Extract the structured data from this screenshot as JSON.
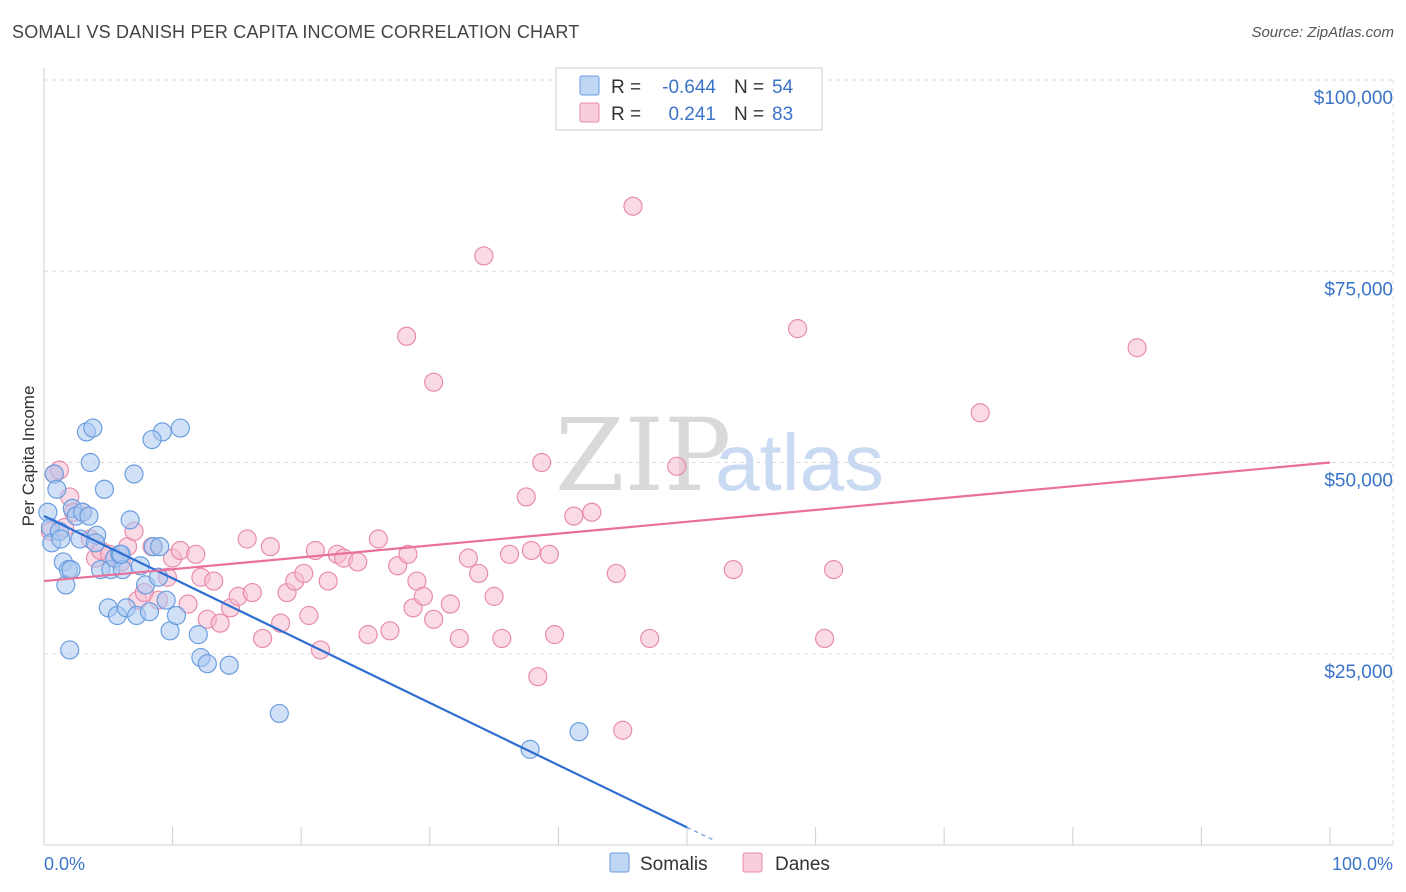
{
  "title": "SOMALI VS DANISH PER CAPITA INCOME CORRELATION CHART",
  "source": "Source: ZipAtlas.com",
  "colors": {
    "somali_fill": "#a9c8f0",
    "somali_stroke": "#6b9de0",
    "somali_line": "#2f6fd1",
    "danes_fill": "#f6bcd0",
    "danes_stroke": "#e88cab",
    "danes_line": "#e8709a",
    "axis_text": "#3a74c9",
    "grid": "#dddddd"
  },
  "legend": {
    "rows": [
      {
        "series": "Somalis",
        "r_label": "R =",
        "r_value": "-0.644",
        "n_label": "N =",
        "n_value": "54"
      },
      {
        "series": "Danes",
        "r_label": "R =",
        "r_value": "0.241",
        "n_label": "N =",
        "n_value": "83"
      }
    ]
  },
  "bottom_legend": [
    "Somalis",
    "Danes"
  ],
  "watermark": {
    "part1": "ZIP",
    "part2": "atlas"
  },
  "chart_data": {
    "type": "scatter",
    "title": "SOMALI VS DANISH PER CAPITA INCOME CORRELATION CHART",
    "xlabel": "",
    "ylabel": "Per Capita Income",
    "xlim": [
      0,
      100
    ],
    "ylim": [
      0,
      100000
    ],
    "x_tick_labels": {
      "min": "0.0%",
      "max": "100.0%"
    },
    "y_ticks": [
      {
        "value": 25000,
        "label": "$25,000"
      },
      {
        "value": 50000,
        "label": "$50,000"
      },
      {
        "value": 75000,
        "label": "$75,000"
      },
      {
        "value": 100000,
        "label": "$100,000"
      }
    ],
    "series": [
      {
        "name": "Somalis",
        "trend": {
          "x1": 0,
          "y1": 43000,
          "x2": 50,
          "y2": 2300,
          "dash_x2": 52,
          "dash_y2": 700
        },
        "points": [
          [
            0.3,
            43500
          ],
          [
            0.5,
            41500
          ],
          [
            0.6,
            39500
          ],
          [
            0.8,
            48500
          ],
          [
            1.0,
            46500
          ],
          [
            1.2,
            41000
          ],
          [
            1.5,
            37000
          ],
          [
            1.7,
            34000
          ],
          [
            1.9,
            36000
          ],
          [
            2.2,
            44000
          ],
          [
            2.5,
            43000
          ],
          [
            2.8,
            40000
          ],
          [
            3.0,
            43500
          ],
          [
            3.3,
            54000
          ],
          [
            3.6,
            50000
          ],
          [
            3.8,
            54500
          ],
          [
            4.1,
            40500
          ],
          [
            4.4,
            36000
          ],
          [
            4.7,
            46500
          ],
          [
            5.0,
            31000
          ],
          [
            5.2,
            36000
          ],
          [
            5.5,
            37500
          ],
          [
            5.7,
            30000
          ],
          [
            5.9,
            38000
          ],
          [
            6.1,
            36000
          ],
          [
            6.4,
            31000
          ],
          [
            6.7,
            42500
          ],
          [
            7.2,
            30000
          ],
          [
            7.5,
            36500
          ],
          [
            7.9,
            34000
          ],
          [
            8.2,
            30500
          ],
          [
            8.5,
            39000
          ],
          [
            8.9,
            35000
          ],
          [
            9.2,
            54000
          ],
          [
            9.5,
            32000
          ],
          [
            9.8,
            28000
          ],
          [
            8.4,
            53000
          ],
          [
            10.3,
            30000
          ],
          [
            10.6,
            54500
          ],
          [
            12.0,
            27500
          ],
          [
            12.2,
            24500
          ],
          [
            12.7,
            23700
          ],
          [
            14.4,
            23500
          ],
          [
            18.3,
            17200
          ],
          [
            2.0,
            25500
          ],
          [
            3.5,
            43000
          ],
          [
            6.0,
            38000
          ],
          [
            7.0,
            48500
          ],
          [
            9.0,
            39000
          ],
          [
            1.3,
            40000
          ],
          [
            2.1,
            36000
          ],
          [
            4.0,
            39500
          ],
          [
            37.8,
            12500
          ],
          [
            41.6,
            14800
          ]
        ]
      },
      {
        "name": "Danes",
        "trend": {
          "x1": 0,
          "y1": 34500,
          "x2": 100,
          "y2": 50000
        },
        "points": [
          [
            0.5,
            41000
          ],
          [
            0.8,
            48500
          ],
          [
            1.2,
            49000
          ],
          [
            1.6,
            41500
          ],
          [
            2.0,
            45500
          ],
          [
            2.3,
            43500
          ],
          [
            3.0,
            43500
          ],
          [
            3.6,
            40000
          ],
          [
            4.0,
            37500
          ],
          [
            4.4,
            38500
          ],
          [
            5.1,
            38000
          ],
          [
            5.5,
            37500
          ],
          [
            6.0,
            37000
          ],
          [
            6.5,
            39000
          ],
          [
            7.0,
            41000
          ],
          [
            7.3,
            32000
          ],
          [
            7.8,
            33000
          ],
          [
            8.4,
            39000
          ],
          [
            8.9,
            32000
          ],
          [
            9.6,
            35000
          ],
          [
            10.0,
            37500
          ],
          [
            10.6,
            38500
          ],
          [
            11.2,
            31500
          ],
          [
            11.8,
            38000
          ],
          [
            12.2,
            35000
          ],
          [
            12.7,
            29500
          ],
          [
            13.2,
            34500
          ],
          [
            13.7,
            29000
          ],
          [
            14.5,
            31000
          ],
          [
            15.1,
            32500
          ],
          [
            15.8,
            40000
          ],
          [
            16.2,
            33000
          ],
          [
            17.0,
            27000
          ],
          [
            17.6,
            39000
          ],
          [
            18.4,
            29000
          ],
          [
            18.9,
            33000
          ],
          [
            19.5,
            34500
          ],
          [
            20.2,
            35500
          ],
          [
            20.6,
            30000
          ],
          [
            21.1,
            38500
          ],
          [
            21.5,
            25500
          ],
          [
            22.1,
            34500
          ],
          [
            22.8,
            38000
          ],
          [
            23.3,
            37500
          ],
          [
            24.4,
            37000
          ],
          [
            25.2,
            27500
          ],
          [
            26.0,
            40000
          ],
          [
            26.9,
            28000
          ],
          [
            27.5,
            36500
          ],
          [
            28.3,
            38000
          ],
          [
            28.7,
            31000
          ],
          [
            29.0,
            34500
          ],
          [
            29.5,
            32500
          ],
          [
            30.3,
            29500
          ],
          [
            31.6,
            31500
          ],
          [
            32.3,
            27000
          ],
          [
            33.0,
            37500
          ],
          [
            33.8,
            35500
          ],
          [
            35.0,
            32500
          ],
          [
            35.6,
            27000
          ],
          [
            36.2,
            38000
          ],
          [
            37.9,
            38500
          ],
          [
            38.4,
            22000
          ],
          [
            39.3,
            38000
          ],
          [
            39.7,
            27500
          ],
          [
            41.2,
            43000
          ],
          [
            42.6,
            43500
          ],
          [
            44.5,
            35500
          ],
          [
            45.8,
            83500
          ],
          [
            47.1,
            27000
          ],
          [
            49.2,
            49500
          ],
          [
            53.6,
            36000
          ],
          [
            58.6,
            67500
          ],
          [
            60.7,
            27000
          ],
          [
            61.4,
            36000
          ],
          [
            72.8,
            56500
          ],
          [
            85.0,
            65000
          ],
          [
            34.2,
            77000
          ],
          [
            30.3,
            60500
          ],
          [
            28.2,
            66500
          ],
          [
            38.7,
            50000
          ],
          [
            37.5,
            45500
          ],
          [
            45.0,
            15000
          ]
        ]
      }
    ]
  }
}
